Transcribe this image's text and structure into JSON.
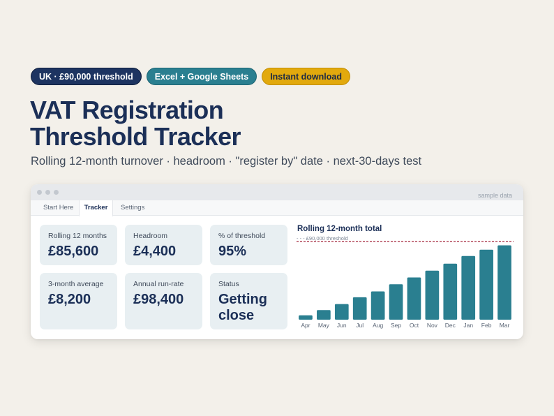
{
  "badges": {
    "region": "UK · £90,000 threshold",
    "platforms": "Excel + Google Sheets",
    "delivery": "Instant download"
  },
  "colors": {
    "navy": "#1b2f57",
    "teal": "#2a7f90",
    "gold": "#e2a90d",
    "threshold_line": "#a3263a"
  },
  "title": {
    "line1": "VAT Registration",
    "line2": "Threshold Tracker"
  },
  "subtitle": "Rolling 12-month turnover · headroom · \"register by\" date · next-30-days test",
  "window": {
    "sample_note": "sample data",
    "tabs": [
      "Start Here",
      "Tracker",
      "Settings"
    ],
    "active_tab": "Tracker"
  },
  "cards": {
    "rolling": {
      "label": "Rolling 12 months",
      "value": "£85,600"
    },
    "headroom": {
      "label": "Headroom",
      "value": "£4,400"
    },
    "pct": {
      "label": "% of threshold",
      "value": "95%"
    },
    "avg": {
      "label": "3-month average",
      "value": "£8,200"
    },
    "runrate": {
      "label": "Annual run-rate",
      "value": "£98,400"
    },
    "status": {
      "label": "Status",
      "value": "Getting close"
    }
  },
  "chart_data": {
    "type": "bar",
    "title": "Rolling 12-month total",
    "categories": [
      "Apr",
      "May",
      "Jun",
      "Jul",
      "Aug",
      "Sep",
      "Oct",
      "Nov",
      "Dec",
      "Jan",
      "Feb",
      "Mar"
    ],
    "values": [
      5000,
      11000,
      18000,
      25800,
      32500,
      40800,
      48600,
      56500,
      64500,
      73300,
      80600,
      85600
    ],
    "threshold": {
      "value": 90000,
      "label": "- - - £90,000 threshold"
    },
    "ylim": [
      0,
      90000
    ],
    "grid": false,
    "legend": "none"
  }
}
